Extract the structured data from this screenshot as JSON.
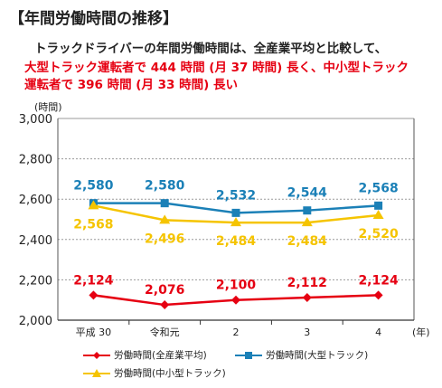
{
  "heading": "【年間労働時間の推移】",
  "lead": "トラックドライバーの年間労働時間は、全産業平均と比較して、",
  "highlight_line1": "大型トラック運転者で 444 時間 (月 37 時間) 長く、中小型トラック",
  "highlight_line2": "運転者で 396 時間 (月 33 時間) 長い",
  "colors": {
    "all": "#e60012",
    "large": "#1b80b7",
    "small": "#f5c400",
    "grid": "#9a9a9a"
  },
  "chart_data": {
    "type": "line",
    "ylabel": "(時間)",
    "xlabel": "(年)",
    "categories": [
      "平成 30",
      "令和元",
      "2",
      "3",
      "4"
    ],
    "ylim": [
      2000,
      3000
    ],
    "yticks": [
      "2,000",
      "2,200",
      "2,400",
      "2,600",
      "2,800",
      "3,000"
    ],
    "grid": true,
    "legend_position": "bottom",
    "series": [
      {
        "name": "労働時間(全産業平均)",
        "key": "all",
        "marker": "diamond",
        "values": [
          2124,
          2076,
          2100,
          2112,
          2124
        ],
        "labels": [
          "2,124",
          "2,076",
          "2,100",
          "2,112",
          "2,124"
        ]
      },
      {
        "name": "労働時間(大型トラック)",
        "key": "large",
        "marker": "square",
        "values": [
          2580,
          2580,
          2532,
          2544,
          2568
        ],
        "labels": [
          "2,580",
          "2,580",
          "2,532",
          "2,544",
          "2,568"
        ]
      },
      {
        "name": "労働時間(中小型トラック)",
        "key": "small",
        "marker": "triangle",
        "values": [
          2568,
          2496,
          2484,
          2484,
          2520
        ],
        "labels": [
          "2,568",
          "2,496",
          "2,484",
          "2,484",
          "2,520"
        ]
      }
    ]
  }
}
